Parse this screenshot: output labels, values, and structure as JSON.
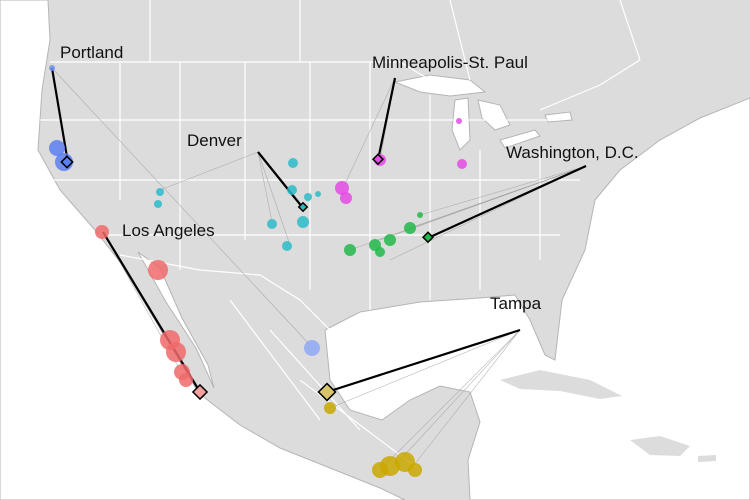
{
  "cities": [
    {
      "name": "Portland"
    },
    {
      "name": "Minneapolis-St. Paul"
    },
    {
      "name": "Denver"
    },
    {
      "name": "Washington, D.C."
    },
    {
      "name": "Los Angeles"
    },
    {
      "name": "Tampa"
    }
  ]
}
